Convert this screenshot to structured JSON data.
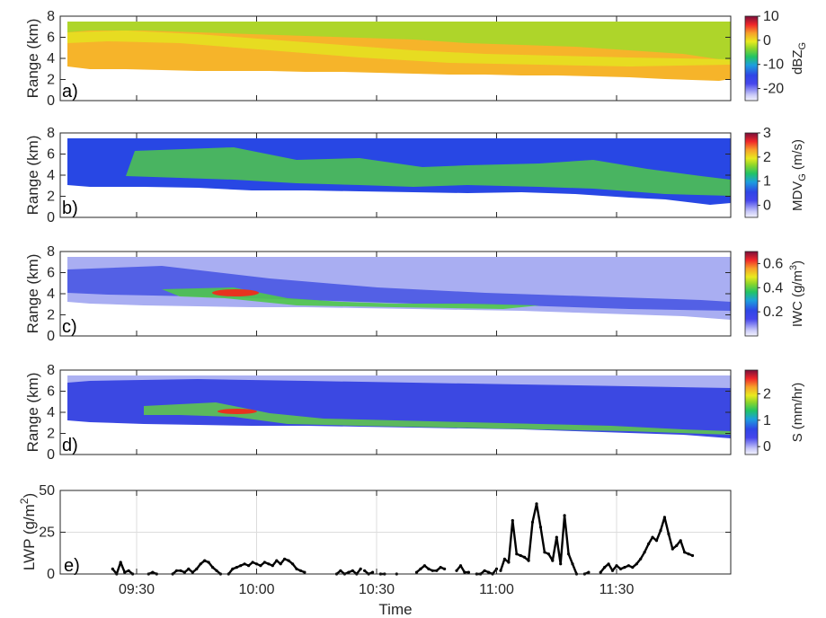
{
  "figure": {
    "xlabel": "Time",
    "time_ticks": [
      "09:30",
      "10:00",
      "10:30",
      "11:00",
      "11:30"
    ]
  },
  "chart_data": [
    {
      "type": "heatmap",
      "panel_label": "a)",
      "ylabel": "Range (km)",
      "ylim": [
        0,
        8
      ],
      "yticks": [
        "0",
        "2",
        "4",
        "6",
        "8"
      ],
      "colorbar": {
        "label": "dBZ",
        "label_sub": "G",
        "ticks": [
          "10",
          "0",
          "-10",
          "-20"
        ],
        "range": [
          -25,
          10
        ]
      }
    },
    {
      "type": "heatmap",
      "panel_label": "b)",
      "ylabel": "Range (km)",
      "ylim": [
        0,
        8
      ],
      "yticks": [
        "0",
        "2",
        "4",
        "6",
        "8"
      ],
      "colorbar": {
        "label": "MDV",
        "label_sub": "G",
        "label_unit": "(m/s)",
        "ticks": [
          "3",
          "2",
          "1",
          "0"
        ],
        "range": [
          -0.5,
          3
        ]
      }
    },
    {
      "type": "heatmap",
      "panel_label": "c)",
      "ylabel": "Range (km)",
      "ylim": [
        0,
        8
      ],
      "yticks": [
        "0",
        "2",
        "4",
        "6",
        "8"
      ],
      "colorbar": {
        "label": "IWC",
        "label_unit": "(g/m",
        "label_sup": "3",
        "label_close": ")",
        "ticks": [
          "0.6",
          "0.4",
          "0.2"
        ],
        "range": [
          0,
          0.7
        ]
      }
    },
    {
      "type": "heatmap",
      "panel_label": "d)",
      "ylabel": "Range (km)",
      "ylim": [
        0,
        8
      ],
      "yticks": [
        "0",
        "2",
        "4",
        "6",
        "8"
      ],
      "colorbar": {
        "label": "S",
        "label_unit": "(mm/hr)",
        "ticks": [
          "2",
          "1",
          "0"
        ],
        "range": [
          -0.3,
          2.9
        ]
      }
    },
    {
      "type": "line",
      "panel_label": "e)",
      "ylabel": "LWP (g/m",
      "ylabel_sup": "2",
      "ylabel_close": ")",
      "ylim": [
        0,
        50
      ],
      "yticks": [
        "0",
        "25",
        "50"
      ],
      "x_unit": "minutes after 09:30",
      "series": [
        {
          "color": "#000000",
          "segments": [
            [
              [
                -6,
                3
              ],
              [
                -5,
                0
              ],
              [
                -4,
                7
              ],
              [
                -3,
                1
              ],
              [
                -2,
                2
              ],
              [
                -1,
                0
              ]
            ],
            [
              [
                3,
                0
              ],
              [
                4,
                1
              ],
              [
                5,
                0
              ]
            ],
            [
              [
                9,
                0
              ],
              [
                10,
                2
              ],
              [
                11,
                2
              ],
              [
                12,
                1
              ],
              [
                13,
                3
              ],
              [
                14,
                1
              ],
              [
                15,
                3
              ],
              [
                16,
                6
              ],
              [
                17,
                8
              ],
              [
                18,
                7
              ],
              [
                19,
                4
              ],
              [
                20,
                2
              ],
              [
                21,
                0
              ]
            ],
            [
              [
                23,
                0
              ],
              [
                24,
                3
              ],
              [
                25,
                4
              ],
              [
                26,
                5
              ],
              [
                27,
                6
              ],
              [
                28,
                5
              ],
              [
                29,
                7
              ],
              [
                30,
                6
              ],
              [
                31,
                5
              ],
              [
                32,
                7
              ],
              [
                33,
                6
              ],
              [
                34,
                5
              ],
              [
                35,
                8
              ],
              [
                36,
                6
              ],
              [
                37,
                9
              ],
              [
                38,
                8
              ],
              [
                39,
                6
              ],
              [
                40,
                3
              ],
              [
                41,
                2
              ],
              [
                42,
                1
              ]
            ],
            [
              [
                50,
                0
              ],
              [
                51,
                2
              ],
              [
                52,
                0
              ],
              [
                53,
                1
              ],
              [
                54,
                2
              ],
              [
                55,
                0
              ],
              [
                56,
                3
              ]
            ],
            [
              [
                57,
                2
              ],
              [
                58,
                0
              ],
              [
                59,
                1
              ]
            ],
            [
              [
                61,
                0
              ],
              [
                62,
                0
              ]
            ],
            [
              [
                65,
                0
              ]
            ],
            [
              [
                70,
                1
              ],
              [
                71,
                3
              ],
              [
                72,
                5
              ],
              [
                73,
                3
              ],
              [
                74,
                2
              ],
              [
                75,
                2
              ],
              [
                76,
                4
              ],
              [
                77,
                3
              ]
            ],
            [
              [
                80,
                2
              ],
              [
                81,
                5
              ],
              [
                82,
                1
              ],
              [
                83,
                1
              ]
            ],
            [
              [
                85,
                0
              ],
              [
                86,
                0
              ],
              [
                87,
                2
              ],
              [
                88,
                1
              ],
              [
                89,
                0
              ],
              [
                90,
                3
              ]
            ],
            [
              [
                91,
                2
              ],
              [
                92,
                9
              ],
              [
                93,
                7
              ],
              [
                94,
                32
              ],
              [
                95,
                12
              ],
              [
                96,
                11
              ],
              [
                97,
                10
              ],
              [
                98,
                8
              ],
              [
                99,
                31
              ],
              [
                100,
                42
              ],
              [
                101,
                28
              ],
              [
                102,
                13
              ],
              [
                103,
                12
              ],
              [
                104,
                8
              ],
              [
                105,
                22
              ],
              [
                106,
                6
              ],
              [
                107,
                35
              ],
              [
                108,
                12
              ],
              [
                109,
                6
              ],
              [
                110,
                0
              ]
            ],
            [
              [
                112,
                0
              ],
              [
                113,
                1
              ]
            ],
            [
              [
                116,
                1
              ],
              [
                117,
                4
              ],
              [
                118,
                6
              ],
              [
                119,
                2
              ],
              [
                120,
                5
              ],
              [
                121,
                3
              ],
              [
                122,
                4
              ],
              [
                123,
                5
              ],
              [
                124,
                4
              ],
              [
                125,
                6
              ],
              [
                126,
                9
              ],
              [
                127,
                13
              ],
              [
                128,
                18
              ],
              [
                129,
                22
              ],
              [
                130,
                20
              ],
              [
                131,
                26
              ],
              [
                132,
                34
              ],
              [
                133,
                24
              ],
              [
                134,
                15
              ],
              [
                135,
                17
              ],
              [
                136,
                20
              ],
              [
                137,
                13
              ],
              [
                138,
                12
              ],
              [
                139,
                11
              ]
            ]
          ]
        }
      ]
    }
  ]
}
